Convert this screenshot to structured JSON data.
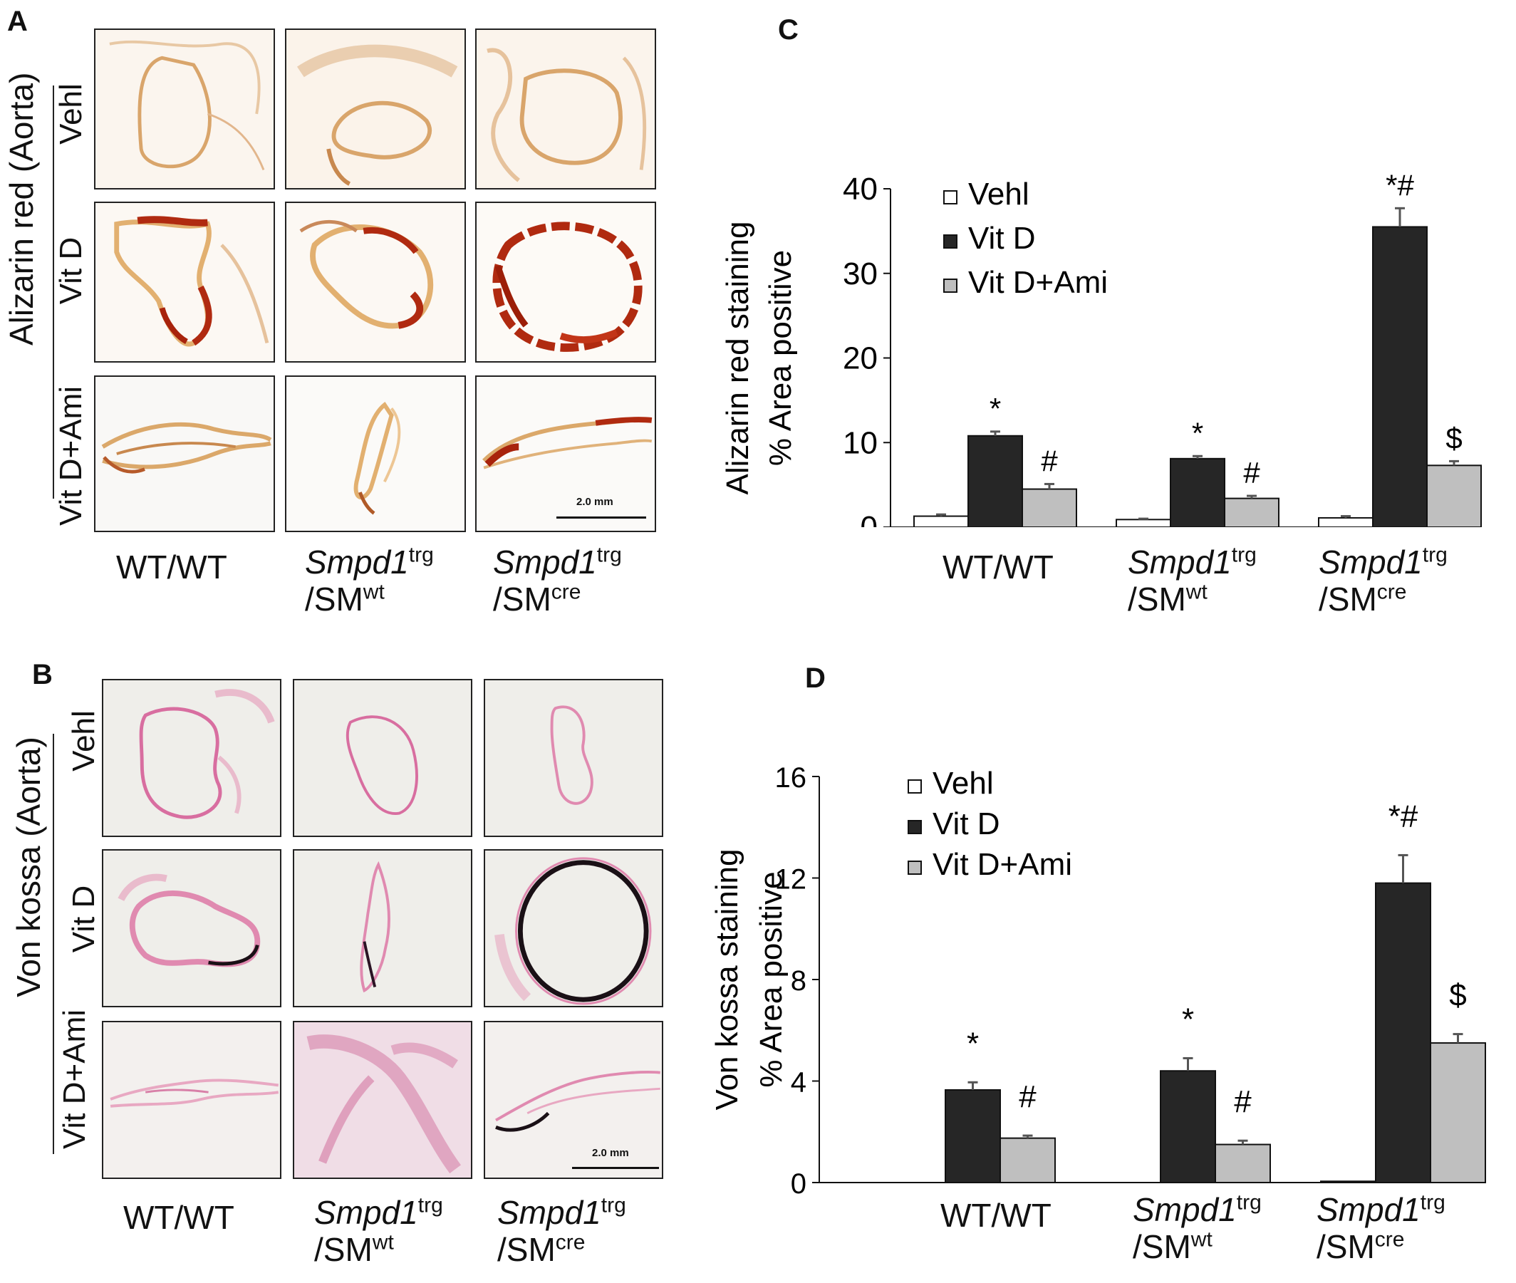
{
  "panels": {
    "A": {
      "letter": "A",
      "stain_label": "Alizarin red (Aorta)",
      "row_labels": [
        "Vehl",
        "Vit D",
        "Vit D+Ami"
      ],
      "scale_bar": "2.0 mm",
      "stain_color": "#b02a10",
      "tissue_color": "#d9a56b"
    },
    "B": {
      "letter": "B",
      "stain_label": "Von kossa (Aorta)",
      "row_labels": [
        "Vehl",
        "Vit D",
        "Vit D+Ami"
      ],
      "scale_bar": "2.0 mm",
      "stain_color": "#1a1016",
      "tissue_color": "#e59ab8"
    },
    "C": {
      "letter": "C"
    },
    "D": {
      "letter": "D"
    }
  },
  "genotypes": [
    {
      "main": "WT/WT",
      "italic": "",
      "sup": "",
      "line2": "",
      "sub": ""
    },
    {
      "main": "",
      "italic": "Smpd1",
      "sup": "trg",
      "line2": "/SM",
      "sub": "wt"
    },
    {
      "main": "",
      "italic": "Smpd1",
      "sup": "trg",
      "line2": "/SM",
      "sub": "cre"
    }
  ],
  "chart_data": [
    {
      "type": "bar",
      "panel": "C",
      "ylabel": [
        "Alizarin red staining",
        "% Area positive"
      ],
      "ylim": [
        0,
        40
      ],
      "yticks": [
        0,
        10,
        20,
        30,
        40
      ],
      "categories": [
        "WT/WT",
        "Smpd1trg/SMwt",
        "Smpd1trg/SMcre"
      ],
      "series": [
        {
          "name": "Vehl",
          "color": "#ffffff",
          "values": [
            1.3,
            0.9,
            1.1
          ],
          "errors": [
            0.2,
            0.1,
            0.2
          ],
          "annotations": [
            "",
            "",
            ""
          ]
        },
        {
          "name": "Vit D",
          "color": "#262626",
          "values": [
            10.8,
            8.1,
            35.5
          ],
          "errors": [
            0.5,
            0.3,
            2.2
          ],
          "annotations": [
            "*",
            "*",
            "*#"
          ]
        },
        {
          "name": "Vit D+Ami",
          "color": "#bfbfbf",
          "values": [
            4.5,
            3.4,
            7.3
          ],
          "errors": [
            0.6,
            0.3,
            0.5
          ],
          "annotations": [
            "#",
            "#",
            "$"
          ]
        }
      ],
      "legend": "top-left"
    },
    {
      "type": "bar",
      "panel": "D",
      "ylabel": [
        "Von kossa  staining",
        "% Area positive"
      ],
      "ylim": [
        0,
        16
      ],
      "yticks": [
        0,
        4,
        8,
        12,
        16
      ],
      "categories": [
        "WT/WT",
        "Smpd1trg/SMwt",
        "Smpd1trg/SMcre"
      ],
      "series": [
        {
          "name": "Vehl",
          "color": "#ffffff",
          "values": [
            0,
            0,
            0.05
          ],
          "errors": [
            0,
            0,
            0
          ],
          "annotations": [
            "",
            "",
            ""
          ]
        },
        {
          "name": "Vit D",
          "color": "#262626",
          "values": [
            3.65,
            4.4,
            11.8
          ],
          "errors": [
            0.3,
            0.5,
            1.1
          ],
          "annotations": [
            "*",
            "*",
            "*#"
          ]
        },
        {
          "name": "Vit D+Ami",
          "color": "#bfbfbf",
          "values": [
            1.75,
            1.5,
            5.5
          ],
          "errors": [
            0.1,
            0.15,
            0.35
          ],
          "annotations": [
            "#",
            "#",
            "$"
          ]
        }
      ],
      "legend": "top-left"
    }
  ]
}
